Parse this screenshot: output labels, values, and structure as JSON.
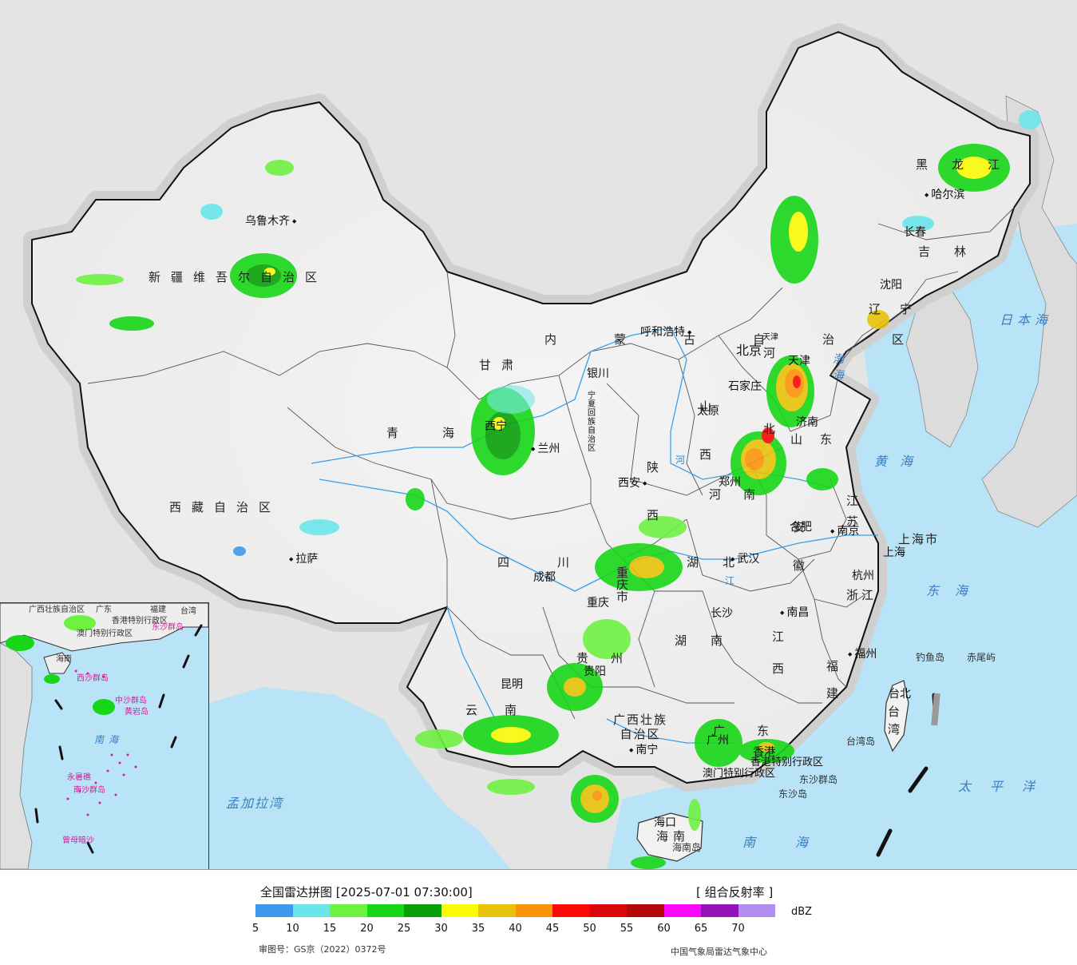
{
  "map": {
    "provinces": {
      "xinjiang": "新疆维吾尔自治区",
      "xizang": "西藏自治区",
      "qinghai": "青海",
      "gansu": "甘肃",
      "sichuan": "四川",
      "yunnan": "云南",
      "guizhou": "贵州",
      "chongqing": "重庆市",
      "guangxi": "广西壮族自治区",
      "guangdong": "广东",
      "hainan": "海南",
      "hunan": "湖南",
      "hubei": "湖北",
      "jiangxi": "江西",
      "fujian": "福建",
      "zhejiang": "浙江",
      "anhui": "安徽",
      "jiangsu": "江苏",
      "shanghai": "上海市",
      "shandong": "山东",
      "henan": "河南",
      "hebei": "河北",
      "shanxi": "山西",
      "shaanxi": "陕西",
      "neimenggu": "内蒙古自治区",
      "ningxia": "宁夏回族自治区",
      "liaoning": "辽宁",
      "jilin": "吉林",
      "heilongjiang": "黑龙江",
      "taiwan": "台湾",
      "tianjin": "天津",
      "hongkong": "香港特别行政区",
      "macau": "澳门特别行政区"
    },
    "cities": {
      "urumqi": "乌鲁木齐",
      "lhasa": "拉萨",
      "xining": "西宁",
      "lanzhou": "兰州",
      "yinchuan": "银川",
      "hohhot": "呼和浩特",
      "beijing": "北京",
      "tianjin": "天津",
      "shijiazhuang": "石家庄",
      "taiyuan": "太原",
      "jinan": "济南",
      "zhengzhou": "郑州",
      "xian": "西安",
      "chengdu": "成都",
      "chongqing": "重庆",
      "guiyang": "贵阳",
      "kunming": "昆明",
      "nanning": "南宁",
      "guangzhou": "广州",
      "hongkong": "香港",
      "haikou": "海口",
      "changsha": "长沙",
      "wuhan": "武汉",
      "nanchang": "南昌",
      "fuzhou": "福州",
      "taibei": "台北",
      "hangzhou": "杭州",
      "hefei": "合肥",
      "nanjing": "南京",
      "shanghai": "上海",
      "shenyang": "沈阳",
      "changchun": "长春",
      "harbin": "哈尔滨"
    },
    "seas": {
      "riben": "日本海",
      "huanghai": "黄海",
      "donghai": "东海",
      "taipingyang": "太平洋",
      "nanhai": "南海",
      "bohai": "渤海",
      "mengjiala": "孟加拉湾"
    },
    "islands": {
      "diaoyu": "钓鱼岛",
      "chiwei": "赤尾屿",
      "dongsha_qundao": "东沙群岛",
      "dongsha_dao": "东沙岛",
      "taiwan_dao": "台湾岛",
      "hainan_dao": "海南岛"
    },
    "rivers": {
      "huanghe": "河",
      "changjiang": "江"
    }
  },
  "inset": {
    "labels": {
      "guangxi": "广西壮族自治区",
      "guangdong": "广东",
      "fujian": "福建",
      "taiwan": "台湾",
      "hongkong": "香港特别行政区",
      "macau": "澳门特别行政区",
      "hainan": "海南",
      "dongsha": "东沙群岛",
      "xisha": "西沙群岛",
      "zhongsha": "中沙群岛",
      "huangyan": "黄岩岛",
      "nansha": "南沙群岛",
      "yongshu": "永暑礁",
      "zengmu": "曾母暗沙",
      "nanhai": "南海"
    }
  },
  "legend": {
    "title": "全国雷达拼图 [2025-07-01 07:30:00]",
    "product": "[ 组合反射率 ]",
    "unit": "dBZ",
    "ticks": [
      "5",
      "10",
      "15",
      "20",
      "25",
      "30",
      "35",
      "40",
      "45",
      "50",
      "55",
      "60",
      "65",
      "70"
    ],
    "colors": [
      "#3d99ea",
      "#6ae6ea",
      "#6ef141",
      "#18d618",
      "#08a008",
      "#fbfb08",
      "#e6c308",
      "#fb9308",
      "#fb0808",
      "#d80808",
      "#b50808",
      "#fb08fb",
      "#9410b7",
      "#b18fef"
    ],
    "approval": "审图号：GS京（2022）0372号",
    "organization": "中国气象局雷达气象中心"
  }
}
